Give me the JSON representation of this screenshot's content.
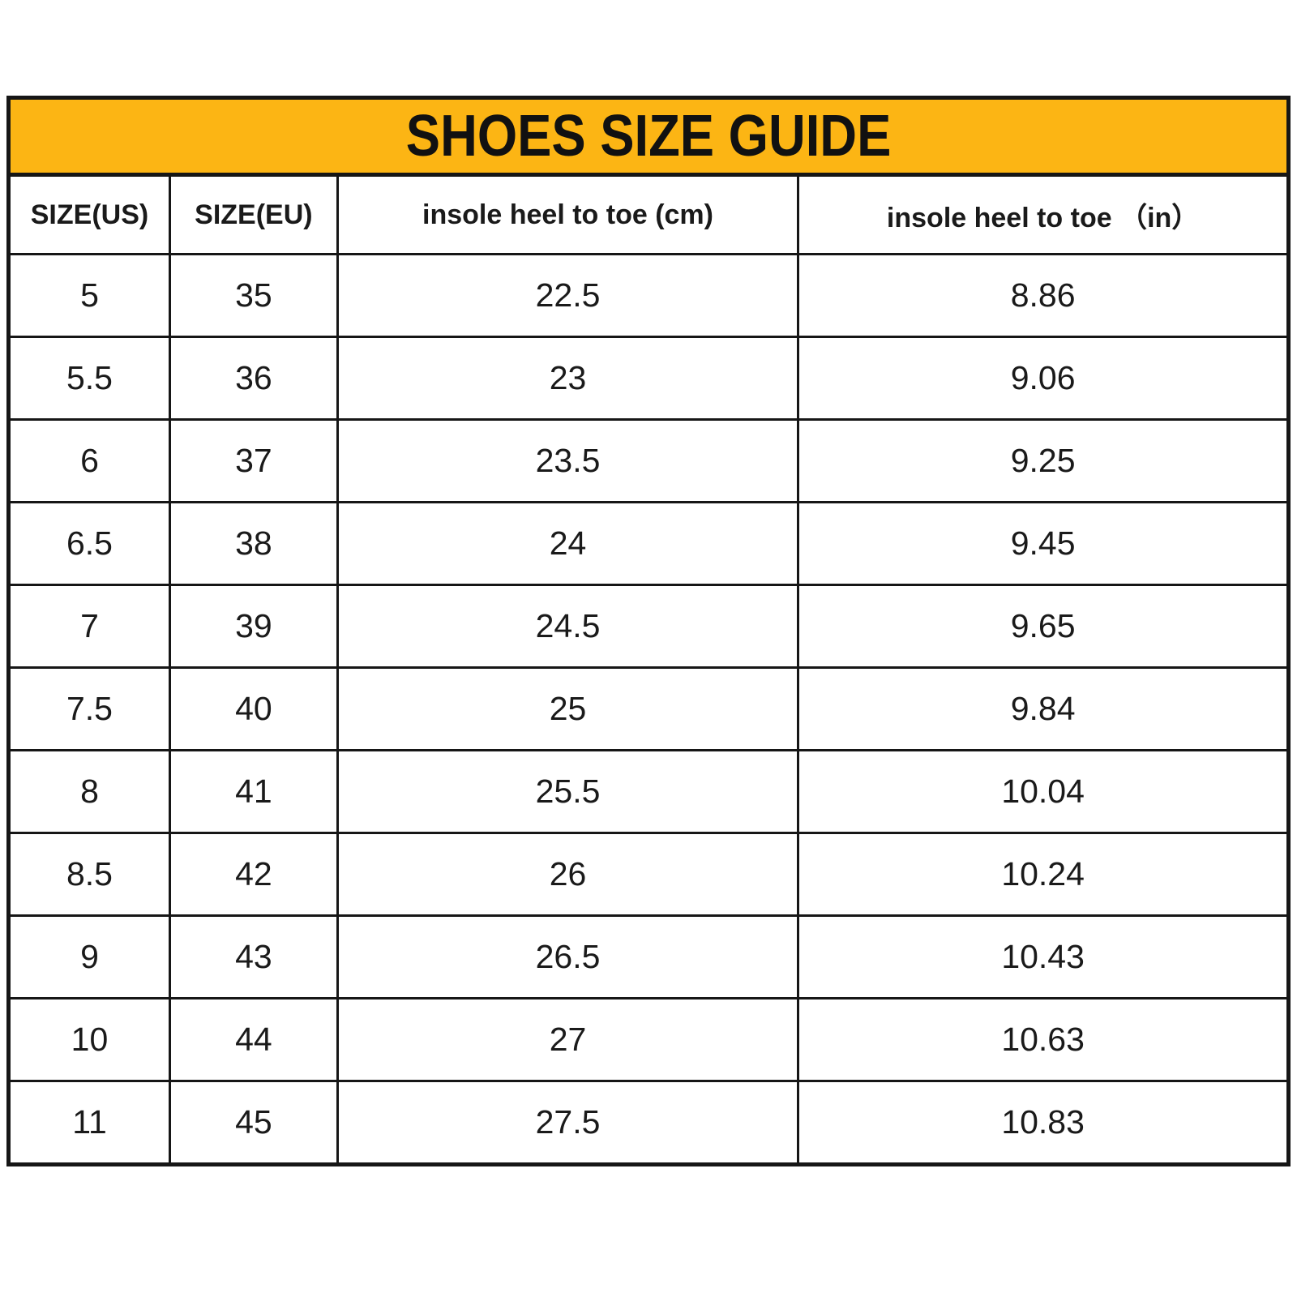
{
  "title": "SHOES SIZE GUIDE",
  "colors": {
    "title_background": "#FCB514",
    "border": "#161616",
    "text": "#1A1A1A",
    "page_background": "#FFFFFF"
  },
  "table": {
    "columns": [
      "SIZE(US)",
      "SIZE(EU)",
      "insole heel to toe (cm)",
      "insole heel to toe （in）"
    ],
    "rows": [
      {
        "size_us": "5",
        "size_eu": "35",
        "cm": "22.5",
        "in": "8.86"
      },
      {
        "size_us": "5.5",
        "size_eu": "36",
        "cm": "23",
        "in": "9.06"
      },
      {
        "size_us": "6",
        "size_eu": "37",
        "cm": "23.5",
        "in": "9.25"
      },
      {
        "size_us": "6.5",
        "size_eu": "38",
        "cm": "24",
        "in": "9.45"
      },
      {
        "size_us": "7",
        "size_eu": "39",
        "cm": "24.5",
        "in": "9.65"
      },
      {
        "size_us": "7.5",
        "size_eu": "40",
        "cm": "25",
        "in": "9.84"
      },
      {
        "size_us": "8",
        "size_eu": "41",
        "cm": "25.5",
        "in": "10.04"
      },
      {
        "size_us": "8.5",
        "size_eu": "42",
        "cm": "26",
        "in": "10.24"
      },
      {
        "size_us": "9",
        "size_eu": "43",
        "cm": "26.5",
        "in": "10.43"
      },
      {
        "size_us": "10",
        "size_eu": "44",
        "cm": "27",
        "in": "10.63"
      },
      {
        "size_us": "11",
        "size_eu": "45",
        "cm": "27.5",
        "in": "10.83"
      }
    ]
  }
}
